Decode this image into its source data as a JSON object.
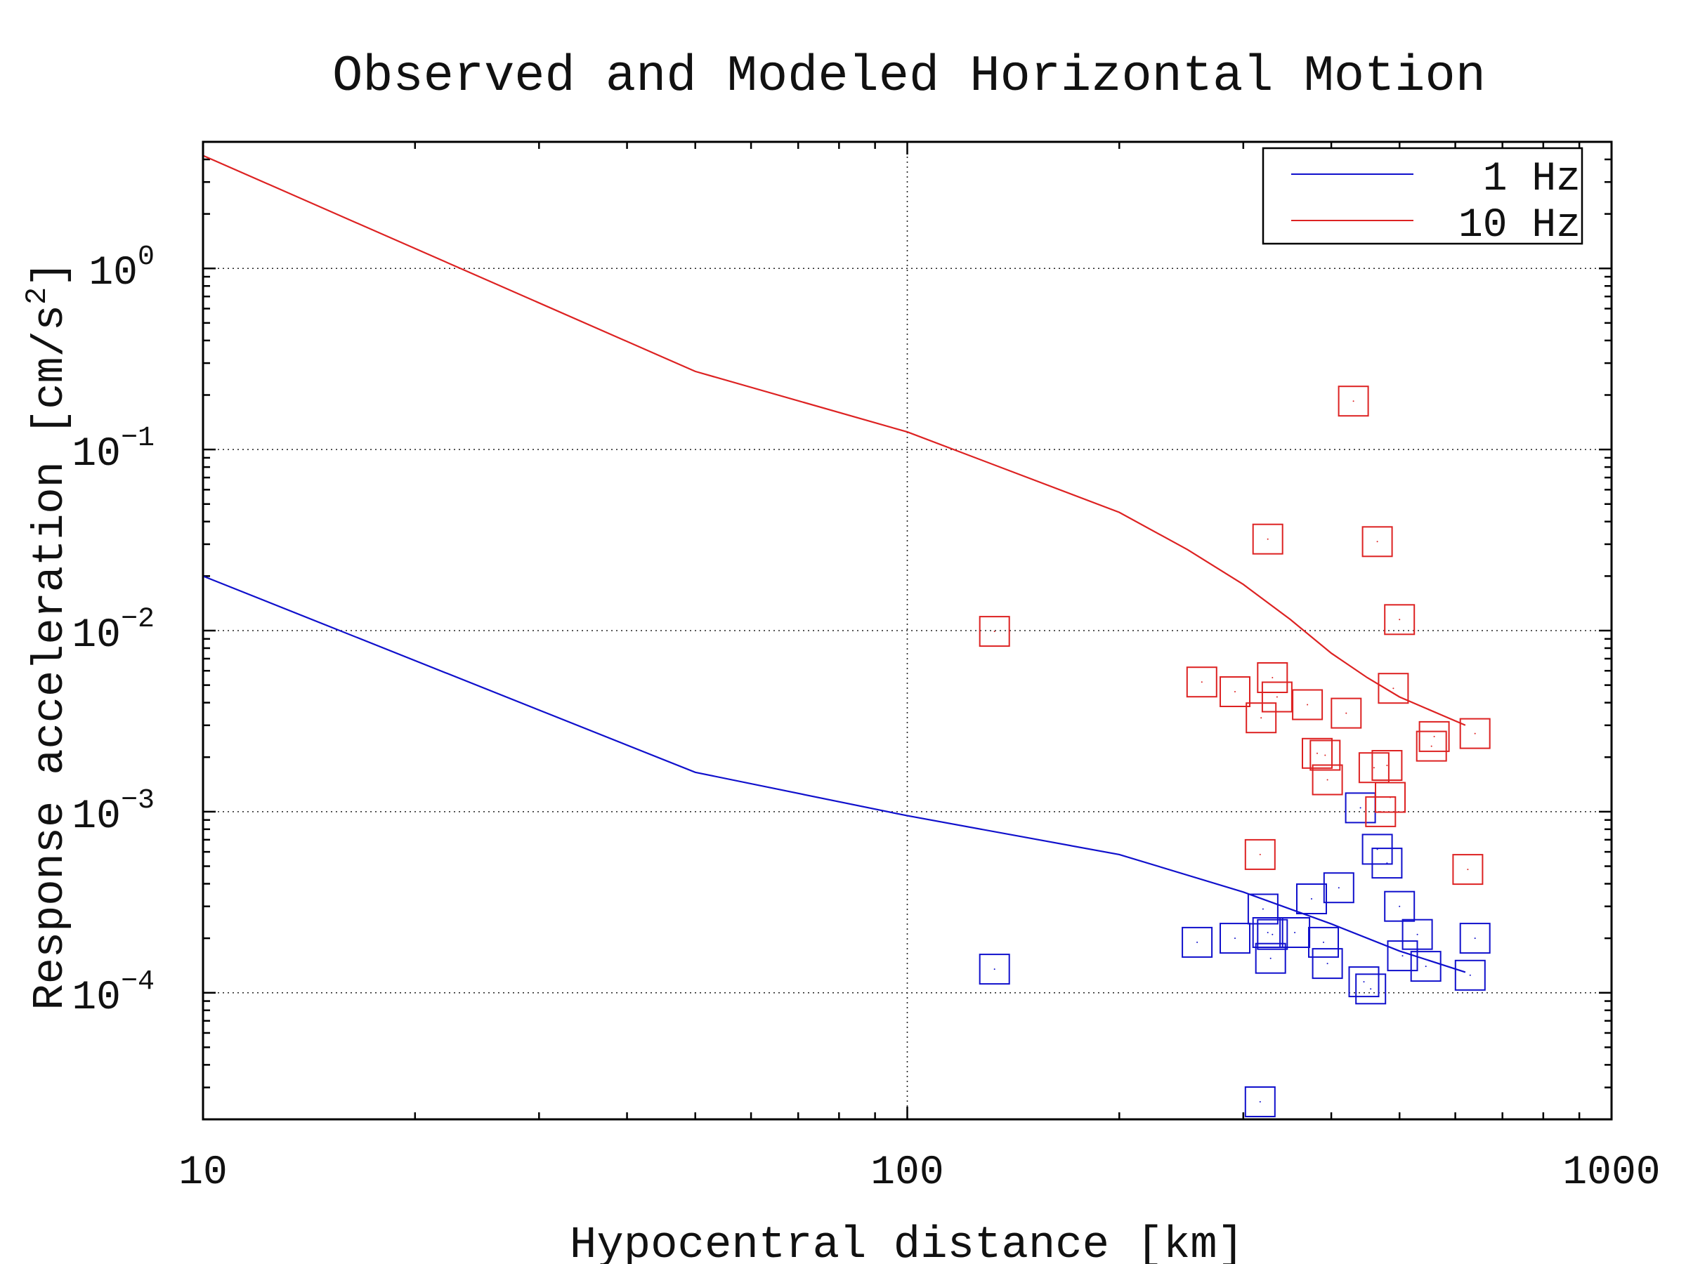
{
  "chart_data": {
    "type": "scatter",
    "title": "Observed and Modeled Horizontal Motion",
    "xlabel": "Hypocentral distance [km]",
    "ylabel": "Response acceleration [cm/s",
    "ylabel_sup": "2",
    "ylabel_close": "]",
    "xscale": "log",
    "yscale": "log",
    "xlim": [
      10,
      1000
    ],
    "ylim": [
      2e-05,
      5
    ],
    "x_ticks": [
      {
        "value": 10,
        "label": "10"
      },
      {
        "value": 100,
        "label": "100"
      },
      {
        "value": 1000,
        "label": "1000"
      }
    ],
    "y_ticks": [
      {
        "value": 1,
        "base": "10",
        "exp": "0"
      },
      {
        "value": 0.1,
        "base": "10",
        "exp": "−1"
      },
      {
        "value": 0.01,
        "base": "10",
        "exp": "−2"
      },
      {
        "value": 0.001,
        "base": "10",
        "exp": "−3"
      },
      {
        "value": 0.0001,
        "base": "10",
        "exp": "−4"
      }
    ],
    "grid": "dotted at major ticks",
    "legend_position": "top-right",
    "series": [
      {
        "name": "1 Hz",
        "color": "#1010cc",
        "model_line": {
          "x": [
            10,
            50,
            100,
            200,
            300,
            400,
            500,
            620
          ],
          "y": [
            0.02,
            0.00165,
            0.00095,
            0.00058,
            0.00036,
            0.00024,
            0.00017,
            0.00013
          ]
        },
        "observed": {
          "marker": "square",
          "x": [
            133,
            258,
            292,
            317,
            320,
            325,
            328,
            330,
            355,
            375,
            390,
            395,
            410,
            440,
            445,
            455,
            465,
            480,
            500,
            505,
            530,
            545,
            630,
            640
          ],
          "y": [
            0.000135,
            0.00019,
            0.0002,
            2.5e-05,
            0.00029,
            0.000215,
            0.000155,
            0.00021,
            0.000215,
            0.00033,
            0.00019,
            0.000145,
            0.00038,
            0.00105,
            0.000115,
            0.000105,
            0.00062,
            0.00052,
            0.0003,
            0.00016,
            0.00021,
            0.00014,
            0.000125,
            0.0002
          ]
        }
      },
      {
        "name": "10 Hz",
        "color": "#dd2222",
        "model_line": {
          "x": [
            10,
            50,
            100,
            200,
            250,
            300,
            350,
            400,
            450,
            500,
            620
          ],
          "y": [
            4.2,
            0.27,
            0.125,
            0.045,
            0.028,
            0.018,
            0.0115,
            0.0075,
            0.0055,
            0.0043,
            0.003
          ]
        },
        "observed": {
          "marker": "square",
          "x": [
            133,
            262,
            292,
            317,
            318,
            325,
            330,
            335,
            370,
            382,
            392,
            395,
            420,
            430,
            460,
            465,
            470,
            480,
            485,
            490,
            500,
            555,
            560,
            625,
            640
          ],
          "y": [
            0.0099,
            0.0052,
            0.0046,
            0.00058,
            0.0033,
            0.032,
            0.0055,
            0.0043,
            0.0039,
            0.0021,
            0.00205,
            0.0015,
            0.0035,
            0.185,
            0.00175,
            0.031,
            0.001,
            0.0018,
            0.0012,
            0.0048,
            0.0115,
            0.0023,
            0.0026,
            0.00048,
            0.0027
          ]
        }
      }
    ]
  }
}
